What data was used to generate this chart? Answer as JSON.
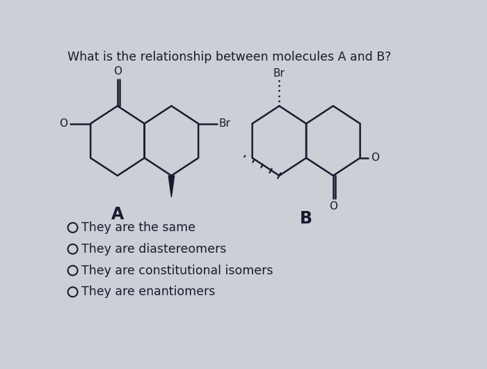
{
  "title": "What is the relationship between molecules A and B?",
  "title_fontsize": 12.5,
  "background_color": "#cbcfd6",
  "label_A": "A",
  "label_B": "B",
  "choices": [
    "They are the same",
    "They are diastereomers",
    "They are constitutional isomers",
    "They are enantiomers"
  ],
  "choice_fontsize": 12.5,
  "label_fontsize": 17,
  "line_color": "#1a1a2e",
  "line_width": 1.8,
  "text_color": "#1a1a2e"
}
